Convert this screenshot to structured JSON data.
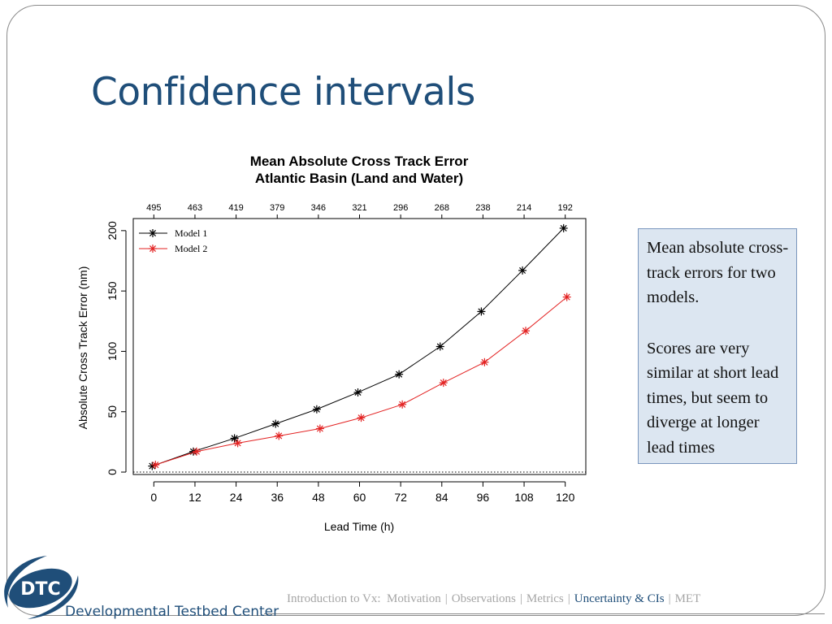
{
  "slide": {
    "title": "Confidence intervals"
  },
  "note": {
    "paragraph1": "Mean absolute cross-track errors for two models.",
    "paragraph2": "Scores are very similar at short lead times, but seem to diverge at longer lead times"
  },
  "footer": {
    "items": [
      {
        "label": "Introduction to Vx:",
        "active": false
      },
      {
        "label": "Motivation",
        "active": false
      },
      {
        "label": "Observations",
        "active": false
      },
      {
        "label": "Metrics",
        "active": false
      },
      {
        "label": "Uncertainty & CIs",
        "active": true
      },
      {
        "label": "MET",
        "active": false
      }
    ],
    "separator": "|"
  },
  "logo": {
    "abbrev": "DTC",
    "name": "Developmental Testbed Center"
  },
  "colors": {
    "title": "#1f4e79",
    "model1": "#000000",
    "model2": "#e32222",
    "note_bg": "#dce6f1"
  },
  "chart_data": {
    "type": "line",
    "title": "Mean Absolute Cross Track Error",
    "subtitle": "Atlantic Basin (Land and Water)",
    "xlabel": "Lead Time (h)",
    "ylabel": "Absolute Cross Track Error (nm)",
    "x": [
      0,
      12,
      24,
      36,
      48,
      60,
      72,
      84,
      96,
      108,
      120
    ],
    "x_ticks": [
      "0",
      "12",
      "24",
      "36",
      "48",
      "60",
      "72",
      "84",
      "96",
      "108",
      "120"
    ],
    "top_counts": [
      "495",
      "463",
      "419",
      "379",
      "346",
      "321",
      "296",
      "268",
      "238",
      "214",
      "192"
    ],
    "y_ticks": [
      "0",
      "50",
      "100",
      "150",
      "200"
    ],
    "xlim": [
      -6,
      126
    ],
    "ylim": [
      -2,
      210
    ],
    "zero_line": "dotted",
    "legend_position": "top-left",
    "series": [
      {
        "name": "Model 1",
        "color": "#000000",
        "values": [
          5,
          17,
          28,
          40,
          52,
          66,
          81,
          104,
          133,
          167,
          202
        ]
      },
      {
        "name": "Model 2",
        "color": "#e32222",
        "values": [
          6,
          17,
          24,
          30,
          36,
          45,
          56,
          74,
          91,
          117,
          145
        ]
      }
    ]
  }
}
